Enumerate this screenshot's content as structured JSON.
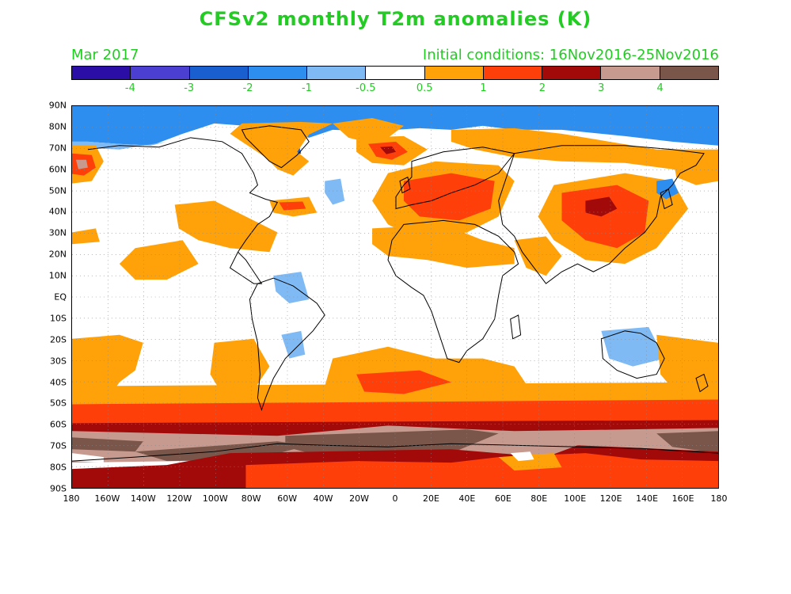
{
  "title": "CFSv2 monthly T2m anomalies (K)",
  "month_label": "Mar 2017",
  "initial_conditions": "Initial conditions: 16Nov2016-25Nov2016",
  "colorbar": {
    "colors": [
      "#2a0ea6",
      "#4a3fd0",
      "#1a5fcf",
      "#2d8ef0",
      "#7fbaf5",
      "#ffffff",
      "#ffa20a",
      "#ff3f0a",
      "#a20a0a",
      "#c79a8f",
      "#7a564a"
    ],
    "tick_labels": [
      "-4",
      "-3",
      "-2",
      "-1",
      "-0.5",
      "0.5",
      "1",
      "2",
      "3",
      "4"
    ]
  },
  "lat_labels": [
    "90N",
    "80N",
    "70N",
    "60N",
    "50N",
    "40N",
    "30N",
    "20N",
    "10N",
    "EQ",
    "10S",
    "20S",
    "30S",
    "40S",
    "50S",
    "60S",
    "70S",
    "80S",
    "90S"
  ],
  "lon_labels": [
    "180",
    "160W",
    "140W",
    "120W",
    "100W",
    "80W",
    "60W",
    "40W",
    "20W",
    "0",
    "20E",
    "40E",
    "60E",
    "80E",
    "100E",
    "120E",
    "140E",
    "160E",
    "180"
  ],
  "colors": {
    "text_green": "#22cc22",
    "coast": "#000000"
  }
}
